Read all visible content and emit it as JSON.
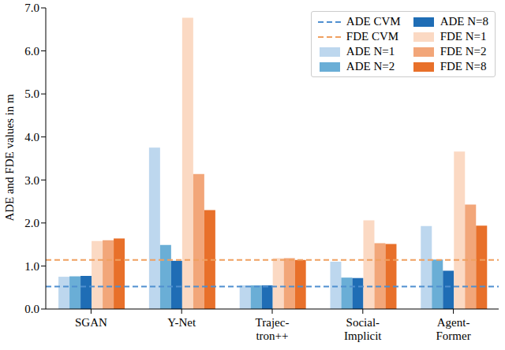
{
  "chart_data": {
    "type": "bar",
    "y_label": "ADE and FDE values in m",
    "categories": [
      "SGAN",
      "Y-Net",
      "Trajec-\ntron++",
      "Social-\nImplicit",
      "Agent-\nFormer"
    ],
    "series": [
      {
        "name": "ADE N=1",
        "color": "#bdd7ee",
        "values": [
          0.75,
          3.75,
          0.55,
          1.1,
          1.93
        ]
      },
      {
        "name": "ADE N=2",
        "color": "#6aaed6",
        "values": [
          0.76,
          1.49,
          0.55,
          0.73,
          1.15
        ]
      },
      {
        "name": "ADE N=8",
        "color": "#1f6db5",
        "values": [
          0.77,
          1.12,
          0.55,
          0.72,
          0.89
        ]
      },
      {
        "name": "FDE N=1",
        "color": "#fbd9c3",
        "values": [
          1.58,
          6.77,
          1.18,
          2.06,
          3.66
        ]
      },
      {
        "name": "FDE N=2",
        "color": "#f2a679",
        "values": [
          1.6,
          3.14,
          1.18,
          1.53,
          2.43
        ]
      },
      {
        "name": "FDE N=8",
        "color": "#e8702a",
        "values": [
          1.64,
          2.3,
          1.14,
          1.51,
          1.94
        ]
      }
    ],
    "reference_lines": [
      {
        "name": "ADE CVM",
        "value": 0.52,
        "color": "#4f8fd0",
        "line_style": "dashed"
      },
      {
        "name": "FDE CVM",
        "value": 1.14,
        "color": "#f0a060",
        "line_style": "dashed"
      }
    ],
    "ylim": [
      0,
      7
    ],
    "yticks": [
      {
        "value": 0,
        "label": "0.0"
      },
      {
        "value": 1,
        "label": "1.0"
      },
      {
        "value": 2,
        "label": "2.0"
      },
      {
        "value": 3,
        "label": "3.0"
      },
      {
        "value": 4,
        "label": "4.0"
      },
      {
        "value": 5,
        "label": "5.0"
      },
      {
        "value": 6,
        "label": "6.0"
      },
      {
        "value": 7,
        "label": "7.0"
      }
    ],
    "grid": false,
    "legend": "upper right"
  }
}
